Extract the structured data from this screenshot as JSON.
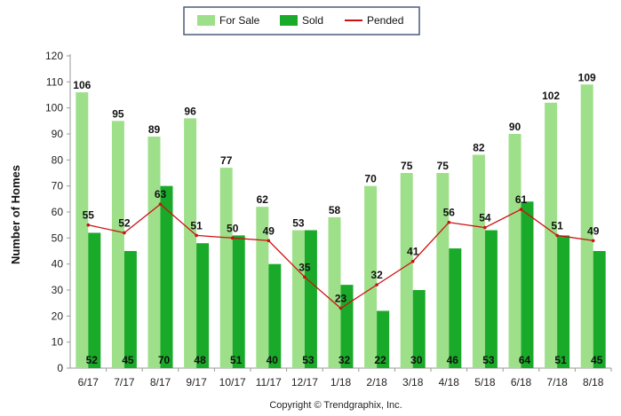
{
  "chart_data": {
    "type": "bar",
    "categories": [
      "6/17",
      "7/17",
      "8/17",
      "9/17",
      "10/17",
      "11/17",
      "12/17",
      "1/18",
      "2/18",
      "3/18",
      "4/18",
      "5/18",
      "6/18",
      "7/18",
      "8/18"
    ],
    "series": [
      {
        "name": "For Sale",
        "type": "bar",
        "color": "#9ee08a",
        "values": [
          106,
          95,
          89,
          96,
          77,
          62,
          53,
          58,
          70,
          75,
          75,
          82,
          90,
          102,
          109
        ]
      },
      {
        "name": "Sold",
        "type": "bar",
        "color": "#1aaa2a",
        "values": [
          52,
          45,
          70,
          48,
          51,
          40,
          53,
          32,
          22,
          30,
          46,
          53,
          64,
          51,
          45
        ]
      },
      {
        "name": "Pended",
        "type": "line",
        "color": "#cc1111",
        "values": [
          55,
          52,
          63,
          51,
          50,
          49,
          35,
          23,
          32,
          41,
          56,
          54,
          61,
          51,
          49
        ]
      }
    ],
    "xlabel": "",
    "ylabel": "Number of Homes",
    "ylim": [
      0,
      120
    ],
    "yticks": [
      0,
      10,
      20,
      30,
      40,
      50,
      60,
      70,
      80,
      90,
      100,
      110,
      120
    ],
    "grid": false,
    "legend_position": "top-center",
    "copyright": "Copyright © Trendgraphix, Inc."
  }
}
